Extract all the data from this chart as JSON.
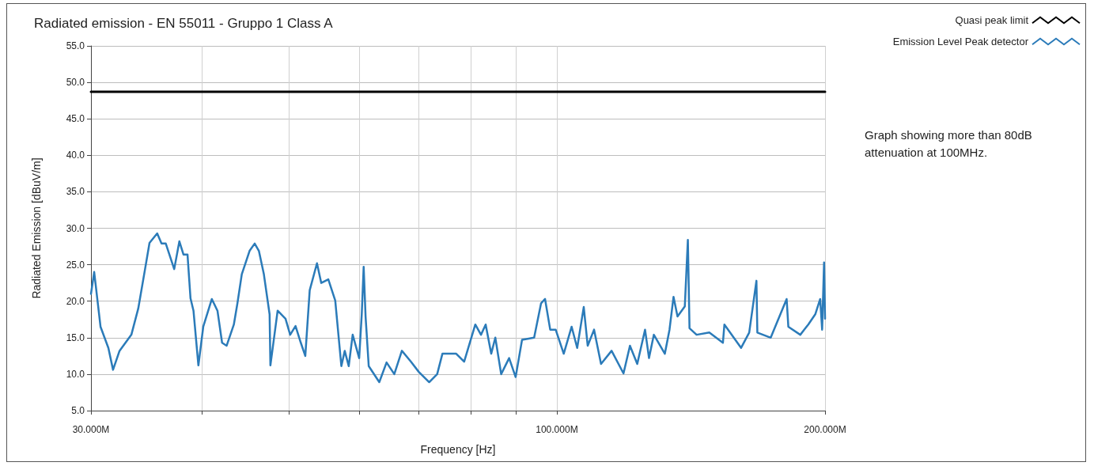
{
  "chart_data": {
    "type": "line",
    "title": "Radiated emission - EN 55011 - Gruppo 1 Class A",
    "xlabel": "Frequency [Hz]",
    "ylabel": "Radiated Emission [dBuV/m]",
    "annotations": [
      "Graph showing more than 80dB attenuation at 100MHz."
    ],
    "log": "x",
    "grid": true,
    "legend": "top right",
    "marker": "none",
    "line_style": "solid",
    "xlim": [
      30,
      200
    ],
    "xticks": [
      {
        "value": 30,
        "label": "30.000M"
      },
      {
        "value": 40,
        "label": null
      },
      {
        "value": 50,
        "label": null
      },
      {
        "value": 60,
        "label": null
      },
      {
        "value": 70,
        "label": null
      },
      {
        "value": 80,
        "label": null
      },
      {
        "value": 90,
        "label": null
      },
      {
        "value": 100,
        "label": "100.000M"
      },
      {
        "value": 200,
        "label": "200.000M"
      }
    ],
    "ylim": [
      5,
      55
    ],
    "yticks": [
      {
        "value": 5,
        "label": "5.0"
      },
      {
        "value": 10,
        "label": "10.0"
      },
      {
        "value": 15,
        "label": "15.0"
      },
      {
        "value": 20,
        "label": "20.0"
      },
      {
        "value": 25,
        "label": "25.0"
      },
      {
        "value": 30,
        "label": "30.0"
      },
      {
        "value": 35,
        "label": "35.0"
      },
      {
        "value": 40,
        "label": "40.0"
      },
      {
        "value": 45,
        "label": "45.0"
      },
      {
        "value": 50,
        "label": "50.0"
      },
      {
        "value": 55,
        "label": "55.0"
      }
    ],
    "series": [
      {
        "name": "Quasi peak limit",
        "color": "#000000",
        "x": [
          30,
          200
        ],
        "values": [
          48.7,
          48.7
        ]
      },
      {
        "name": "Emission Level Peak detector",
        "color": "#2b7bb9",
        "x": [
          30.0,
          30.25,
          30.75,
          31.38,
          31.76,
          32.3,
          33.3,
          33.9,
          34.5,
          34.9,
          35.6,
          36.0,
          36.4,
          37.2,
          37.7,
          38.1,
          38.5,
          38.8,
          39.1,
          39.6,
          40.1,
          41.0,
          41.6,
          42.1,
          42.6,
          43.4,
          43.8,
          44.3,
          45.2,
          45.8,
          46.3,
          46.9,
          47.6,
          47.7,
          48.6,
          49.6,
          50.2,
          50.9,
          51.6,
          52.2,
          52.8,
          53.8,
          54.4,
          55.4,
          56.4,
          57.3,
          57.8,
          58.4,
          59.0,
          60.0,
          60.4,
          60.7,
          61.0,
          61.5,
          63.2,
          64.4,
          65.7,
          67.0,
          68.6,
          70.0,
          71.9,
          73.4,
          74.4,
          77.1,
          78.7,
          81.0,
          82.2,
          83.2,
          84.4,
          85.3,
          86.6,
          88.4,
          89.9,
          91.4,
          94.3,
          96.0,
          97.0,
          98.3,
          99.7,
          101.8,
          103.9,
          105.4,
          107.2,
          108.3,
          110.1,
          112.1,
          115.2,
          118.8,
          120.8,
          123.1,
          125.6,
          126.9,
          128.5,
          132.2,
          133.8,
          135.2,
          136.6,
          139.2,
          140.3,
          140.9,
          143.5,
          148.3,
          153.6,
          154.2,
          161.0,
          164.4,
          167.5,
          167.9,
          173.8,
          181.1,
          181.9,
          187.6,
          191.5,
          195.0,
          197.5,
          198.5,
          199.5,
          200.0
        ],
        "values": [
          21.0,
          24.0,
          16.5,
          13.6,
          10.6,
          13.2,
          15.4,
          19.0,
          24.4,
          28.0,
          29.3,
          27.9,
          27.9,
          24.4,
          28.2,
          26.4,
          26.4,
          20.4,
          18.7,
          11.2,
          16.5,
          20.3,
          18.7,
          14.3,
          13.9,
          16.8,
          19.7,
          23.7,
          26.9,
          27.9,
          26.9,
          23.7,
          18.2,
          11.2,
          18.7,
          17.6,
          15.4,
          16.6,
          14.3,
          12.5,
          21.5,
          25.2,
          22.5,
          23.0,
          20.1,
          11.1,
          13.2,
          11.1,
          15.4,
          12.2,
          18.2,
          24.7,
          17.9,
          11.1,
          8.9,
          11.6,
          10.0,
          13.2,
          11.7,
          10.3,
          8.9,
          10.0,
          12.8,
          12.8,
          11.7,
          16.8,
          15.4,
          16.8,
          12.8,
          15.0,
          10.0,
          12.2,
          9.6,
          14.7,
          15.0,
          19.7,
          20.3,
          16.1,
          16.1,
          12.8,
          16.5,
          13.6,
          19.2,
          13.9,
          16.1,
          11.4,
          13.2,
          10.1,
          13.9,
          11.4,
          16.1,
          12.2,
          15.4,
          12.8,
          16.1,
          20.6,
          17.9,
          19.3,
          28.4,
          16.3,
          15.4,
          15.7,
          14.3,
          16.8,
          13.6,
          15.7,
          22.8,
          15.7,
          15.0,
          20.3,
          16.5,
          15.4,
          16.8,
          18.2,
          20.3,
          16.1,
          25.3,
          17.6
        ]
      }
    ]
  }
}
